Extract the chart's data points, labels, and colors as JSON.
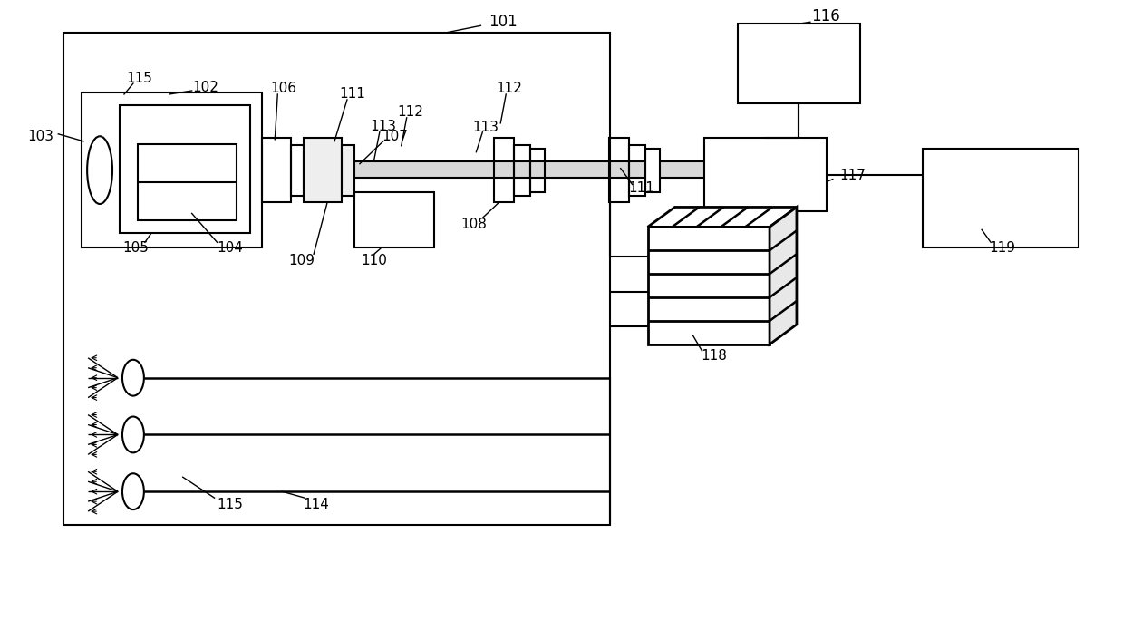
{
  "bg": "#ffffff",
  "lc": "#000000",
  "lw": 1.5,
  "fw": 12.39,
  "fh": 6.85,
  "dpi": 100
}
